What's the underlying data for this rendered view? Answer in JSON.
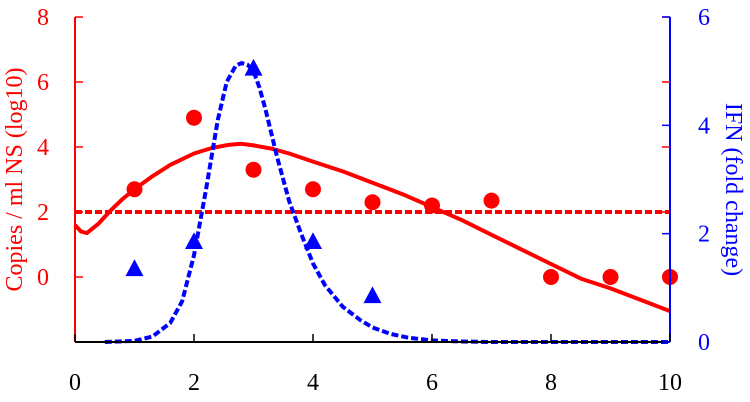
{
  "chart_data": {
    "type": "line",
    "title": "",
    "xlabel": "",
    "xlim": [
      0,
      10
    ],
    "xticks": [
      "0",
      "2",
      "4",
      "6",
      "8",
      "10"
    ],
    "y_left": {
      "label": "Copies / ml NS (log10)",
      "lim": [
        -2,
        8
      ],
      "ticks": [
        "0",
        "2",
        "4",
        "6",
        "8"
      ],
      "color": "#ff0000"
    },
    "y_right": {
      "label": "IFN (fold change)",
      "lim": [
        0,
        6
      ],
      "ticks": [
        "0",
        "2",
        "4",
        "6"
      ],
      "color": "#0000ff"
    },
    "series": [
      {
        "kind": "data",
        "axis": "left",
        "marker": "circle",
        "color": "#ff0000",
        "x": [
          1,
          2,
          3,
          4,
          5,
          6,
          7,
          8,
          9,
          10
        ],
        "y": [
          2.7,
          4.9,
          3.3,
          2.7,
          2.3,
          2.2,
          2.35,
          0,
          0,
          0
        ]
      },
      {
        "kind": "model",
        "axis": "left",
        "style": "solid",
        "color": "#ff0000",
        "x": [
          0,
          0.1,
          0.2,
          0.4,
          0.6,
          0.8,
          1.0,
          1.3,
          1.6,
          2.0,
          2.3,
          2.6,
          2.8,
          3.0,
          3.3,
          3.6,
          4.0,
          4.5,
          5.0,
          5.5,
          6.0,
          6.5,
          7.0,
          7.5,
          8.0,
          8.5,
          9.0,
          9.5,
          10.0
        ],
        "y": [
          1.6,
          1.4,
          1.35,
          1.65,
          2.05,
          2.4,
          2.7,
          3.1,
          3.45,
          3.8,
          3.97,
          4.07,
          4.1,
          4.05,
          3.95,
          3.8,
          3.55,
          3.25,
          2.9,
          2.55,
          2.15,
          1.75,
          1.3,
          0.85,
          0.4,
          -0.05,
          -0.35,
          -0.7,
          -1.05
        ]
      },
      {
        "kind": "threshold",
        "axis": "left",
        "style": "dotted",
        "color": "#ff0000",
        "x": [
          0,
          10
        ],
        "y": [
          2,
          2
        ]
      },
      {
        "kind": "data",
        "axis": "right",
        "marker": "triangle",
        "color": "#0000ff",
        "x": [
          1,
          2,
          3,
          4,
          5
        ],
        "y": [
          1.35,
          1.85,
          5.05,
          1.85,
          0.85
        ]
      },
      {
        "kind": "model",
        "axis": "right",
        "style": "dotted",
        "color": "#0000ff",
        "x": [
          0.5,
          1.0,
          1.3,
          1.6,
          1.8,
          2.0,
          2.2,
          2.4,
          2.55,
          2.7,
          2.8,
          2.9,
          3.0,
          3.1,
          3.2,
          3.4,
          3.6,
          3.8,
          4.0,
          4.2,
          4.5,
          4.8,
          5.0,
          5.3,
          5.6,
          6.0,
          6.5,
          7.0,
          8.0,
          10.0
        ],
        "y": [
          0,
          0.02,
          0.1,
          0.35,
          0.75,
          1.6,
          2.8,
          4.1,
          4.8,
          5.1,
          5.15,
          5.12,
          5.0,
          4.7,
          4.3,
          3.4,
          2.6,
          2.0,
          1.45,
          1.05,
          0.65,
          0.4,
          0.27,
          0.15,
          0.08,
          0.03,
          0.01,
          0,
          0,
          0
        ]
      }
    ]
  }
}
